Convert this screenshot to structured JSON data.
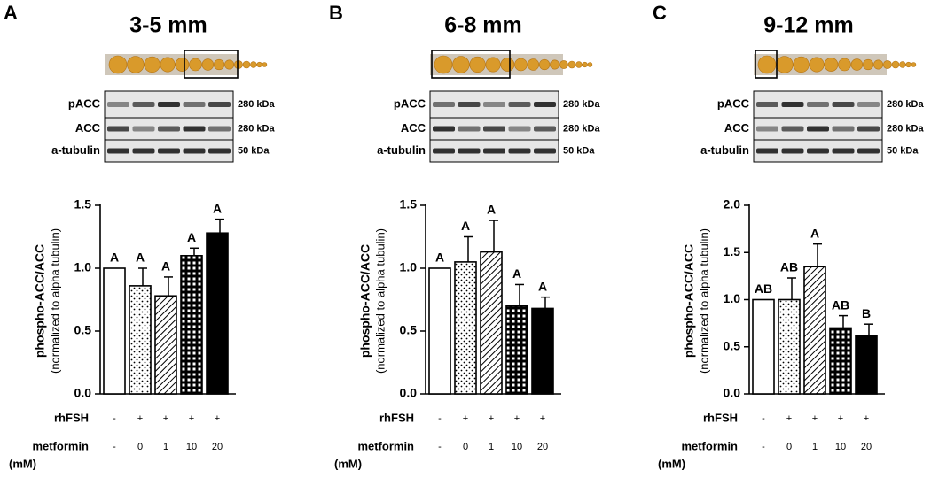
{
  "chart_data": [
    {
      "type": "bar",
      "panel": "A",
      "title": "3-5 mm",
      "blot": {
        "rows": [
          "pACC",
          "ACC",
          "a-tubulin"
        ],
        "sizes": [
          "280 kDa",
          "280 kDa",
          "50 kDa"
        ]
      },
      "y_label": "phospho-ACC/ACC",
      "y_label_note": "(normalized to alpha tubulin)",
      "treatments": [
        {
          "name": "rhFSH",
          "levels": [
            "-",
            "+",
            "+",
            "+",
            "+"
          ]
        },
        {
          "name": "metformin",
          "unit": "(mM)",
          "levels": [
            "-",
            "0",
            "1",
            "10",
            "20"
          ]
        }
      ],
      "values": [
        1.0,
        0.86,
        0.78,
        1.1,
        1.28
      ],
      "errors": [
        null,
        0.14,
        0.15,
        0.06,
        0.11
      ],
      "letters": [
        "A",
        "A",
        "A",
        "A",
        "A"
      ],
      "patterns": [
        "none",
        "dots",
        "diagonal",
        "grid",
        "solid"
      ],
      "ylim": [
        0,
        1.5
      ],
      "yticks": [
        {
          "value": 0,
          "label": "0.0"
        },
        0.5,
        {
          "value": 1,
          "label": "1.0"
        },
        1.5
      ]
    },
    {
      "type": "bar",
      "panel": "B",
      "title": "6-8 mm",
      "blot": {
        "rows": [
          "pACC",
          "ACC",
          "a-tubulin"
        ],
        "sizes": [
          "280 kDa",
          "280 kDa",
          "50 kDa"
        ]
      },
      "y_label": "phospho-ACC/ACC",
      "y_label_note": "(normalized to alpha tubulin)",
      "treatments": [
        {
          "name": "rhFSH",
          "levels": [
            "-",
            "+",
            "+",
            "+",
            "+"
          ]
        },
        {
          "name": "metformin",
          "unit": "(mM)",
          "levels": [
            "-",
            "0",
            "1",
            "10",
            "20"
          ]
        }
      ],
      "values": [
        1.0,
        1.05,
        1.13,
        0.7,
        0.68
      ],
      "errors": [
        null,
        0.2,
        0.25,
        0.17,
        0.09
      ],
      "letters": [
        "A",
        "A",
        "A",
        "A",
        "A"
      ],
      "patterns": [
        "none",
        "dots",
        "diagonal",
        "grid",
        "solid"
      ],
      "ylim": [
        0,
        1.5
      ],
      "yticks": [
        {
          "value": 0,
          "label": "0.0"
        },
        0.5,
        {
          "value": 1,
          "label": "1.0"
        },
        1.5
      ]
    },
    {
      "type": "bar",
      "panel": "C",
      "title": "9-12 mm",
      "blot": {
        "rows": [
          "pACC",
          "ACC",
          "a-tubulin"
        ],
        "sizes": [
          "280 kDa",
          "280 kDa",
          "50 kDa"
        ]
      },
      "y_label": "phospho-ACC/ACC",
      "y_label_note": "(normalized to alpha tubulin)",
      "treatments": [
        {
          "name": "rhFSH",
          "levels": [
            "-",
            "+",
            "+",
            "+",
            "+"
          ]
        },
        {
          "name": "metformin",
          "unit": "(mM)",
          "levels": [
            "-",
            "0",
            "1",
            "10",
            "20"
          ]
        }
      ],
      "values": [
        1.0,
        1.0,
        1.35,
        0.7,
        0.62
      ],
      "errors": [
        null,
        0.23,
        0.24,
        0.13,
        0.12
      ],
      "letters": [
        "AB",
        "AB",
        "A",
        "AB",
        "B"
      ],
      "patterns": [
        "none",
        "dots",
        "diagonal",
        "grid",
        "solid"
      ],
      "ylim": [
        0,
        2
      ],
      "yticks": [
        {
          "value": 0,
          "label": "0.0"
        },
        0.5,
        {
          "value": 1,
          "label": "1.0"
        },
        1.5,
        {
          "value": 2,
          "label": "2.0"
        }
      ]
    }
  ]
}
